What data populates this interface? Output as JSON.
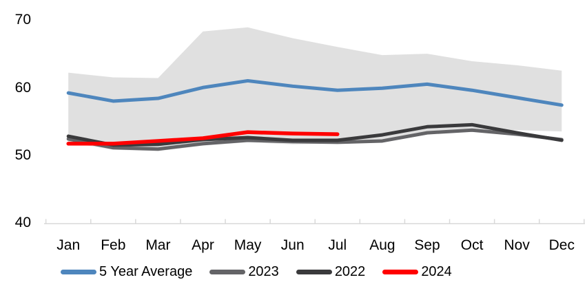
{
  "chart_data": {
    "type": "line",
    "title": "",
    "categories": [
      "Jan",
      "Feb",
      "Mar",
      "Apr",
      "May",
      "Jun",
      "Jul",
      "Aug",
      "Sep",
      "Oct",
      "Nov",
      "Dec"
    ],
    "y_ticks": [
      70,
      60,
      50,
      40
    ],
    "ylim": [
      40,
      71
    ],
    "grid": false,
    "legend_position": "bottom",
    "axis_color": "#d9d9d9",
    "text_color": "#000000",
    "band": {
      "name": "5-year-range",
      "color": "#e0e0e0",
      "top": [
        62.1,
        61.4,
        61.3,
        68.2,
        68.8,
        67.2,
        65.9,
        64.7,
        64.9,
        63.8,
        63.2,
        62.4
      ],
      "bottom": [
        51.8,
        50.7,
        50.5,
        51.3,
        51.8,
        51.5,
        51.6,
        52.2,
        53.0,
        53.4,
        53.6,
        53.4
      ]
    },
    "series": [
      {
        "name": "5 Year Average",
        "color": "#4e86bd",
        "width": 5,
        "values": [
          59.1,
          57.9,
          58.3,
          59.9,
          60.9,
          60.1,
          59.5,
          59.8,
          60.4,
          59.5,
          58.4,
          57.3
        ]
      },
      {
        "name": "2023",
        "color": "#646467",
        "width": 5,
        "values": [
          52.3,
          51.0,
          50.8,
          51.6,
          52.1,
          51.9,
          51.8,
          52.0,
          53.2,
          53.6,
          53.0,
          52.2
        ]
      },
      {
        "name": "2022",
        "color": "#3a3a3c",
        "width": 5,
        "values": [
          52.7,
          51.4,
          51.5,
          52.2,
          52.5,
          52.1,
          52.1,
          52.9,
          54.1,
          54.4,
          53.2,
          52.1
        ]
      },
      {
        "name": "2024",
        "color": "#ff0000",
        "width": 5.5,
        "values": [
          51.6,
          51.6,
          52.0,
          52.4,
          53.3,
          53.1,
          53.0,
          null,
          null,
          null,
          null,
          null
        ]
      }
    ]
  }
}
